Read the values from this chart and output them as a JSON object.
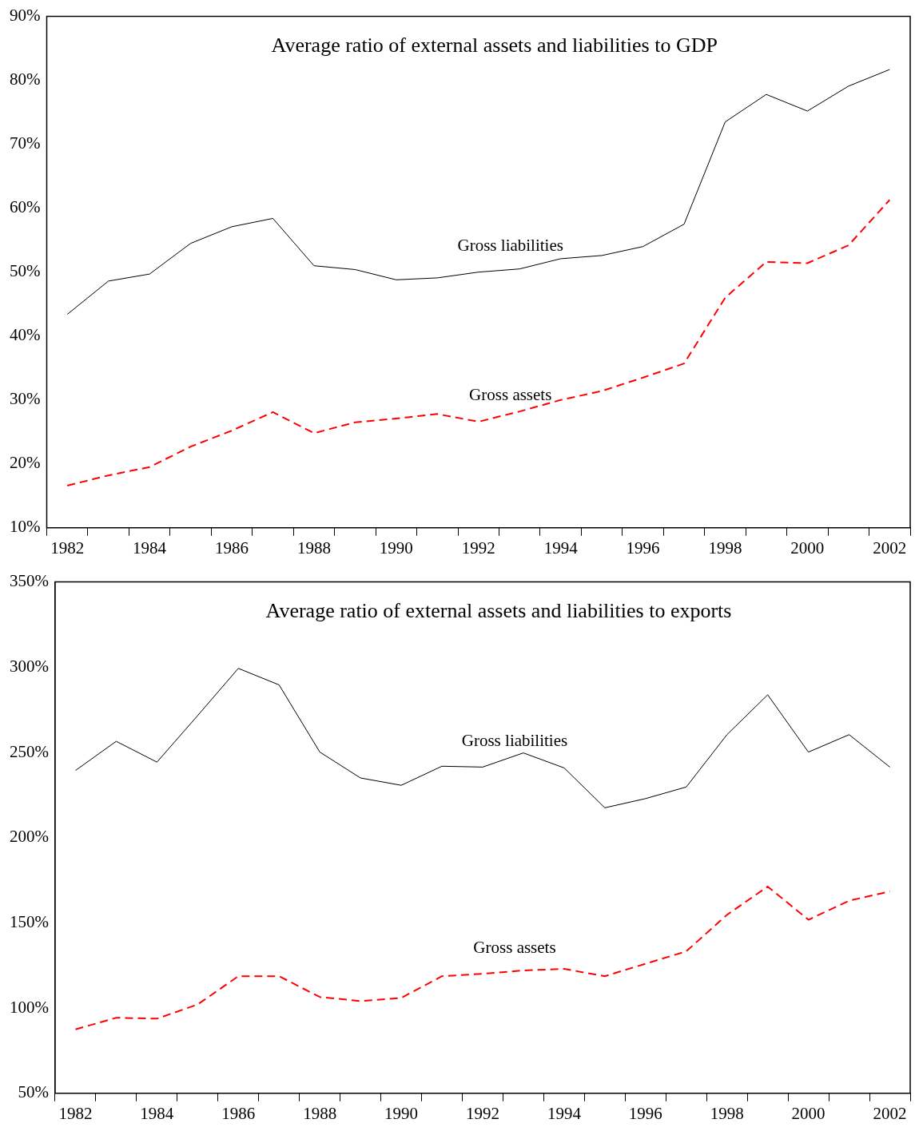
{
  "chart_data": [
    {
      "type": "line",
      "title": "Average ratio of external assets and liabilities to GDP",
      "categories": [
        "1982",
        null,
        "1984",
        null,
        "1986",
        null,
        "1988",
        null,
        "1990",
        null,
        "1992",
        null,
        "1994",
        null,
        "1996",
        null,
        "1998",
        null,
        "2000",
        null,
        "2002"
      ],
      "series": [
        {
          "name": "Gross liabilities",
          "color": "#000000",
          "line_style": "solid",
          "values": [
            43.4,
            48.6,
            49.7,
            54.5,
            57.1,
            58.4,
            51.0,
            50.4,
            48.8,
            49.1,
            50.0,
            50.5,
            52.1,
            52.6,
            54.0,
            57.5,
            73.5,
            77.8,
            75.2,
            79.1,
            81.7
          ]
        },
        {
          "name": "Gross assets",
          "color": "#ff0000",
          "line_style": "dashed",
          "values": [
            16.6,
            18.2,
            19.5,
            22.7,
            25.2,
            28.1,
            24.8,
            26.5,
            27.1,
            27.8,
            26.6,
            28.2,
            30.0,
            31.4,
            33.5,
            35.7,
            46.0,
            51.6,
            51.4,
            54.2,
            61.3
          ]
        }
      ],
      "ylim": [
        10,
        90
      ],
      "yticks": [
        {
          "value": 10,
          "label": "10%"
        },
        {
          "value": 20,
          "label": "20%"
        },
        {
          "value": 30,
          "label": "30%"
        },
        {
          "value": 40,
          "label": "40%"
        },
        {
          "value": 50,
          "label": "50%"
        },
        {
          "value": 60,
          "label": "60%"
        },
        {
          "value": 70,
          "label": "70%"
        },
        {
          "value": 80,
          "label": "80%"
        },
        {
          "value": 90,
          "label": "90%"
        }
      ],
      "grid": false,
      "legend": false,
      "marker": "none"
    },
    {
      "type": "line",
      "title": "Average ratio of external assets and liabilities to exports",
      "categories": [
        "1982",
        null,
        "1984",
        null,
        "1986",
        null,
        "1988",
        null,
        "1990",
        null,
        "1992",
        null,
        "1994",
        null,
        "1996",
        null,
        "1998",
        null,
        "2000",
        null,
        "2002"
      ],
      "series": [
        {
          "name": "Gross liabilities",
          "color": "#000000",
          "line_style": "solid",
          "values": [
            239.4,
            256.5,
            244.3,
            271.6,
            299.3,
            289.6,
            250.2,
            235.0,
            230.7,
            241.9,
            241.4,
            249.7,
            240.9,
            217.5,
            222.9,
            229.7,
            260.4,
            283.8,
            250.2,
            260.4,
            241.4
          ]
        },
        {
          "name": "Gross assets",
          "color": "#ff0000",
          "line_style": "dashed",
          "values": [
            87.5,
            94.3,
            93.8,
            102.1,
            118.7,
            118.7,
            106.5,
            104.1,
            106.0,
            118.7,
            120.1,
            122.1,
            123.0,
            118.7,
            126.0,
            133.3,
            154.7,
            171.3,
            151.8,
            163.0,
            168.4
          ]
        }
      ],
      "ylim": [
        50,
        350
      ],
      "yticks": [
        {
          "value": 50,
          "label": "50%"
        },
        {
          "value": 100,
          "label": "100%"
        },
        {
          "value": 150,
          "label": "150%"
        },
        {
          "value": 200,
          "label": "200%"
        },
        {
          "value": 250,
          "label": "250%"
        },
        {
          "value": 300,
          "label": "300%"
        },
        {
          "value": 350,
          "label": "350%"
        }
      ],
      "grid": false,
      "legend": false,
      "marker": "none"
    }
  ]
}
